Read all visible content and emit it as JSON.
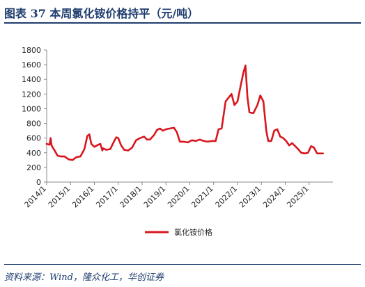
{
  "header": {
    "title": "图表 37  本周氯化铵价格持平（元/吨）"
  },
  "source": "资料来源：Wind，隆众化工，华创证券",
  "chart_data": {
    "type": "line",
    "title": "本周氯化铵价格持平（元/吨）",
    "xlabel": "",
    "ylabel": "",
    "ylim": [
      0,
      1800
    ],
    "yticks": [
      0,
      200,
      400,
      600,
      800,
      1000,
      1200,
      1400,
      1600,
      1800
    ],
    "xlim": [
      "2014-01",
      "2025-12"
    ],
    "xticks": [
      "2014/1",
      "2015/1",
      "2016/1",
      "2017/1",
      "2018/1",
      "2019/1",
      "2020/1",
      "2021/1",
      "2022/1",
      "2023/1",
      "2024/1",
      "2025/1"
    ],
    "grid": false,
    "legend": "bottom",
    "colors": {
      "line": "#d8161e",
      "title": "#1f3d6e",
      "axis": "#888888"
    },
    "series": [
      {
        "name": "氯化铵价格",
        "points": [
          [
            "2014-01-01",
            520
          ],
          [
            "2014-02-15",
            510
          ],
          [
            "2014-03-01",
            600
          ],
          [
            "2014-03-15",
            500
          ],
          [
            "2014-05-01",
            430
          ],
          [
            "2014-06-15",
            360
          ],
          [
            "2014-08-01",
            350
          ],
          [
            "2014-10-01",
            350
          ],
          [
            "2014-12-01",
            310
          ],
          [
            "2015-02-01",
            300
          ],
          [
            "2015-04-01",
            340
          ],
          [
            "2015-06-01",
            350
          ],
          [
            "2015-08-01",
            450
          ],
          [
            "2015-09-15",
            630
          ],
          [
            "2015-10-15",
            650
          ],
          [
            "2015-11-15",
            520
          ],
          [
            "2016-01-01",
            480
          ],
          [
            "2016-03-01",
            510
          ],
          [
            "2016-04-01",
            520
          ],
          [
            "2016-05-01",
            430
          ],
          [
            "2016-05-15",
            460
          ],
          [
            "2016-07-01",
            440
          ],
          [
            "2016-09-01",
            450
          ],
          [
            "2016-11-01",
            560
          ],
          [
            "2016-12-01",
            610
          ],
          [
            "2017-01-01",
            600
          ],
          [
            "2017-02-15",
            500
          ],
          [
            "2017-04-01",
            440
          ],
          [
            "2017-06-01",
            430
          ],
          [
            "2017-08-01",
            470
          ],
          [
            "2017-10-01",
            570
          ],
          [
            "2017-12-01",
            600
          ],
          [
            "2018-02-01",
            620
          ],
          [
            "2018-03-15",
            580
          ],
          [
            "2018-05-01",
            580
          ],
          [
            "2018-07-01",
            640
          ],
          [
            "2018-08-15",
            710
          ],
          [
            "2018-10-01",
            730
          ],
          [
            "2018-11-15",
            700
          ],
          [
            "2019-01-01",
            720
          ],
          [
            "2019-03-01",
            730
          ],
          [
            "2019-05-01",
            740
          ],
          [
            "2019-06-15",
            680
          ],
          [
            "2019-08-01",
            550
          ],
          [
            "2019-10-01",
            550
          ],
          [
            "2019-12-01",
            540
          ],
          [
            "2020-02-01",
            570
          ],
          [
            "2020-04-01",
            560
          ],
          [
            "2020-06-01",
            580
          ],
          [
            "2020-08-01",
            560
          ],
          [
            "2020-10-01",
            550
          ],
          [
            "2020-12-01",
            560
          ],
          [
            "2021-02-01",
            560
          ],
          [
            "2021-03-15",
            720
          ],
          [
            "2021-05-01",
            730
          ],
          [
            "2021-07-01",
            1100
          ],
          [
            "2021-08-15",
            1150
          ],
          [
            "2021-10-01",
            1200
          ],
          [
            "2021-11-15",
            1050
          ],
          [
            "2022-01-01",
            1100
          ],
          [
            "2022-02-15",
            1300
          ],
          [
            "2022-04-01",
            1500
          ],
          [
            "2022-05-01",
            1590
          ],
          [
            "2022-06-01",
            1150
          ],
          [
            "2022-07-01",
            950
          ],
          [
            "2022-09-01",
            940
          ],
          [
            "2022-11-01",
            1050
          ],
          [
            "2022-12-15",
            1180
          ],
          [
            "2023-02-01",
            1100
          ],
          [
            "2023-03-15",
            700
          ],
          [
            "2023-04-15",
            560
          ],
          [
            "2023-06-01",
            560
          ],
          [
            "2023-07-15",
            700
          ],
          [
            "2023-09-01",
            720
          ],
          [
            "2023-10-15",
            620
          ],
          [
            "2023-12-01",
            600
          ],
          [
            "2024-01-15",
            560
          ],
          [
            "2024-03-01",
            500
          ],
          [
            "2024-04-15",
            530
          ],
          [
            "2024-06-01",
            490
          ],
          [
            "2024-07-15",
            450
          ],
          [
            "2024-09-01",
            400
          ],
          [
            "2024-11-01",
            390
          ],
          [
            "2024-12-15",
            400
          ],
          [
            "2025-02-01",
            490
          ],
          [
            "2025-03-15",
            470
          ],
          [
            "2025-05-01",
            390
          ],
          [
            "2025-07-01",
            390
          ],
          [
            "2025-08-01",
            390
          ]
        ]
      }
    ]
  }
}
